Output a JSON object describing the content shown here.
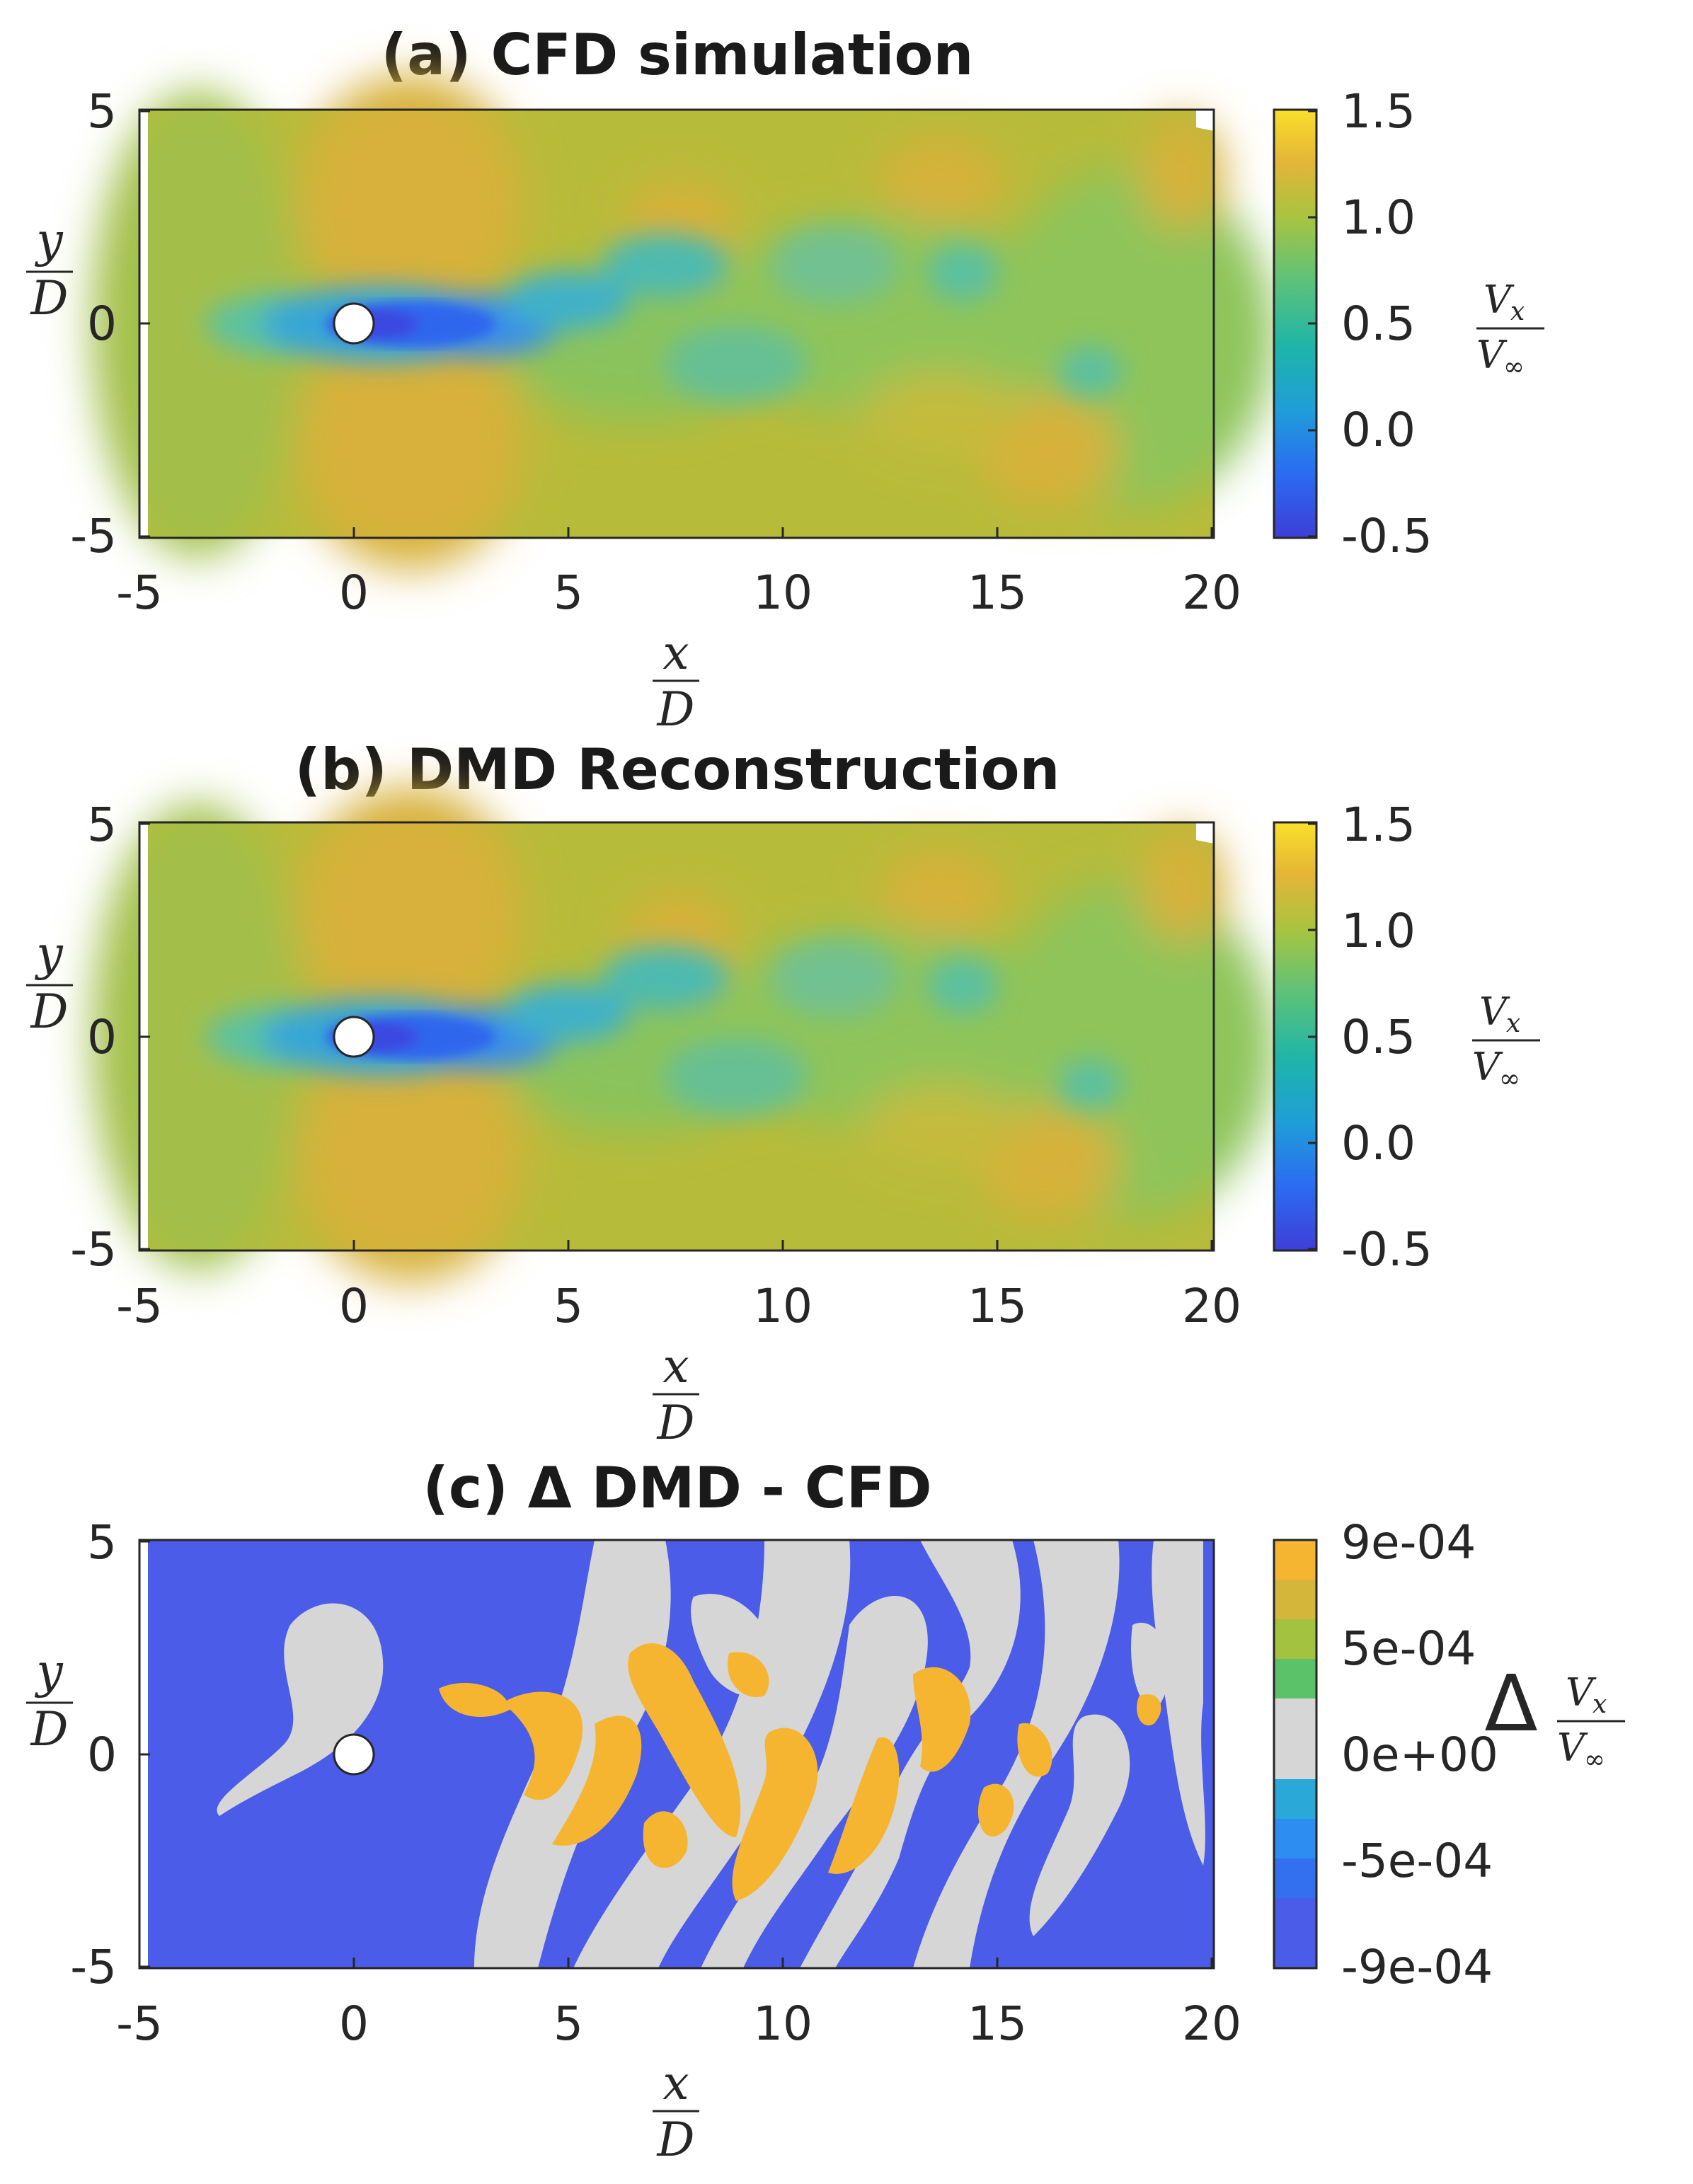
{
  "chart_data": [
    {
      "type": "heatmap",
      "panel": "a",
      "title": "(a) CFD simulation",
      "x_tick_labels": [
        "-5",
        "0",
        "5",
        "10",
        "15",
        "20"
      ],
      "y_tick_labels": [
        "5",
        "0",
        "-5"
      ],
      "xlim": [
        -5,
        20
      ],
      "ylim": [
        -5,
        5
      ],
      "xlabel_num": "x",
      "xlabel_den": "D",
      "ylabel_num": "y",
      "ylabel_den": "D",
      "colorbar": {
        "ticks": [
          "1.5",
          "1.0",
          "0.5",
          "0.0",
          "-0.5"
        ],
        "range": [
          -0.5,
          1.5
        ],
        "label_num": "V",
        "label_num_sub": "x",
        "label_den": "V",
        "label_den_sub": "∞"
      },
      "cylinder": {
        "x": 0,
        "y": 0,
        "diameter": 1
      },
      "field": "streamwise velocity, cylinder wake with alternating vortex street"
    },
    {
      "type": "heatmap",
      "panel": "b",
      "title": "(b) DMD Reconstruction",
      "x_tick_labels": [
        "-5",
        "0",
        "5",
        "10",
        "15",
        "20"
      ],
      "y_tick_labels": [
        "5",
        "0",
        "-5"
      ],
      "xlim": [
        -5,
        20
      ],
      "ylim": [
        -5,
        5
      ],
      "xlabel_num": "x",
      "xlabel_den": "D",
      "ylabel_num": "y",
      "ylabel_den": "D",
      "colorbar": {
        "ticks": [
          "1.5",
          "1.0",
          "0.5",
          "0.0",
          "-0.5"
        ],
        "range": [
          -0.5,
          1.5
        ],
        "label_num": "V",
        "label_num_sub": "x",
        "label_den": "V",
        "label_den_sub": "∞"
      },
      "cylinder": {
        "x": 0,
        "y": 0,
        "diameter": 1
      }
    },
    {
      "type": "heatmap",
      "panel": "c",
      "title": "(c) Δ DMD - CFD",
      "x_tick_labels": [
        "-5",
        "0",
        "5",
        "10",
        "15",
        "20"
      ],
      "y_tick_labels": [
        "5",
        "0",
        "-5"
      ],
      "xlim": [
        -5,
        20
      ],
      "ylim": [
        -5,
        5
      ],
      "xlabel_num": "x",
      "xlabel_den": "D",
      "ylabel_num": "y",
      "ylabel_den": "D",
      "colorbar": {
        "ticks": [
          "9e-04",
          "5e-04",
          "0e+00",
          "-5e-04",
          "-9e-04"
        ],
        "range": [
          -0.0009,
          0.0009
        ],
        "label_prefix": "Δ",
        "label_num": "V",
        "label_num_sub": "x",
        "label_den": "V",
        "label_den_sub": "∞"
      },
      "cylinder": {
        "x": 0,
        "y": 0,
        "diameter": 1
      }
    }
  ],
  "colors": {
    "deep_blue": "#4a5ce8",
    "light_gray": "#d6d6d6",
    "orange": "#f6b530",
    "freestream_green": "#8ec45a",
    "high_yellow": "#e3bd2e"
  }
}
